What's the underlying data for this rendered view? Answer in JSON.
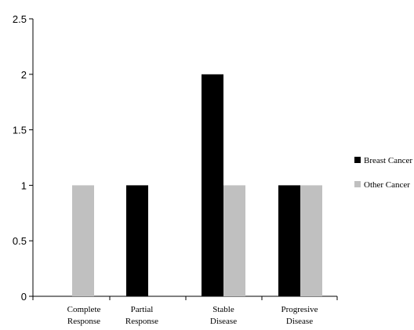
{
  "chart_data": {
    "type": "bar",
    "categories": [
      [
        "Complete",
        "Response"
      ],
      [
        "Partial",
        "Response"
      ],
      [
        "Stable",
        "Disease"
      ],
      [
        "Progresive",
        "Disease"
      ]
    ],
    "series": [
      {
        "name": "Breast Cancer",
        "color": "#000000",
        "values": [
          0,
          1,
          2,
          1
        ]
      },
      {
        "name": "Other Cancer",
        "color": "#c0c0c0",
        "values": [
          1,
          0,
          1,
          1
        ]
      }
    ],
    "ylim": [
      0,
      2.5
    ],
    "yticks": [
      "0",
      "0.5",
      "1",
      "1.5",
      "2",
      "2.5"
    ],
    "legend_position": "right",
    "grid": false
  }
}
